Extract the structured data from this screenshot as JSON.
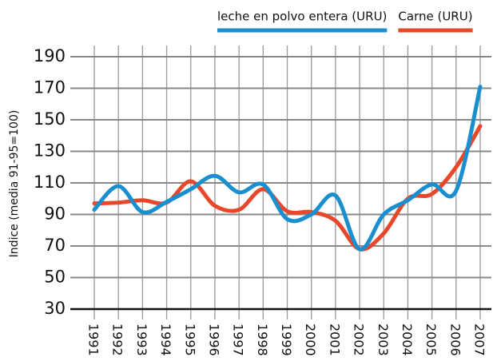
{
  "chart_data": {
    "type": "line",
    "ylabel": "Indice (media 91-95=100)",
    "categories": [
      "1991",
      "1992",
      "1993",
      "1994",
      "1995",
      "1996",
      "1997",
      "1998",
      "1999",
      "2000",
      "2001",
      "2002",
      "2003",
      "2004",
      "2005",
      "2006",
      "2007"
    ],
    "series": [
      {
        "name": "leche en polvo entera (URU)",
        "color": "#1a8fd0",
        "values": [
          93,
          108,
          91.5,
          98,
          106,
          114.5,
          104,
          109,
          87,
          90,
          102,
          68,
          90,
          99,
          109,
          105,
          171
        ]
      },
      {
        "name": "Carne (URU)",
        "color": "#e8472a",
        "values": [
          97,
          97.5,
          99,
          97.5,
          111,
          95.5,
          93,
          106,
          92,
          91.5,
          86,
          68,
          78,
          100,
          103,
          120,
          146
        ]
      }
    ],
    "ylim": [
      30,
      190
    ],
    "yticks": [
      30,
      50,
      70,
      90,
      110,
      130,
      150,
      170,
      190
    ],
    "grid": true
  }
}
